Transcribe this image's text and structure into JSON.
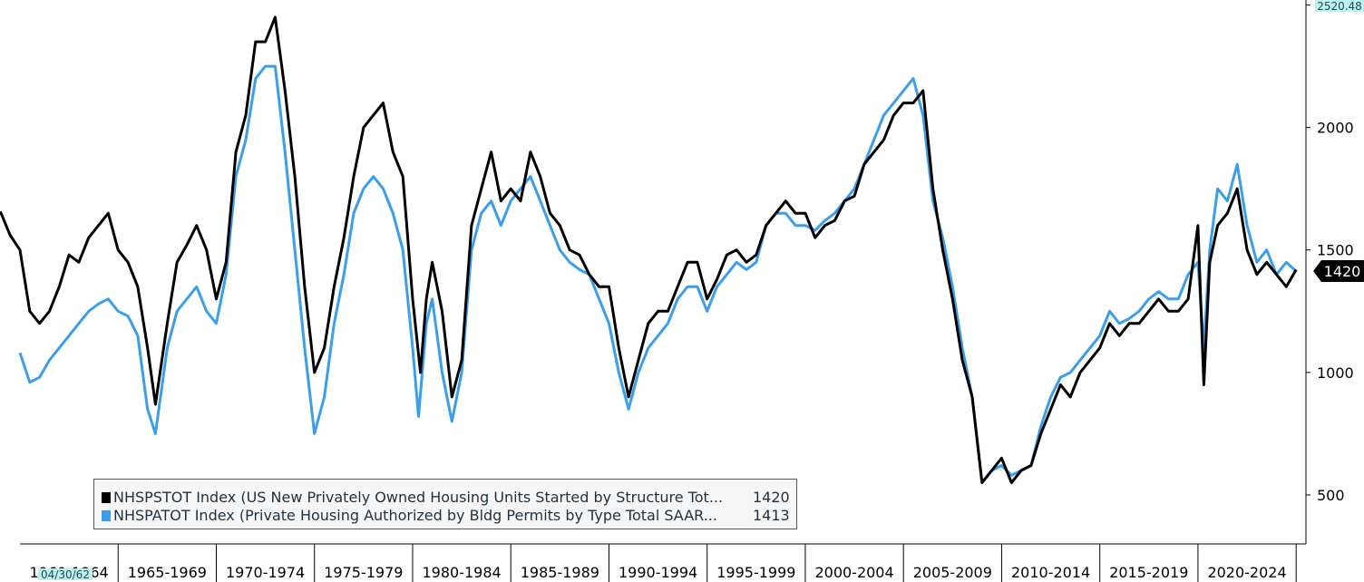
{
  "chart_data": {
    "type": "line",
    "ylim": [
      300,
      2520.48
    ],
    "yticks": [
      500,
      1000,
      1500,
      2000,
      2500
    ],
    "x_periods": [
      "1960-1964",
      "1965-1969",
      "1970-1974",
      "1975-1979",
      "1980-1984",
      "1985-1989",
      "1990-1994",
      "1995-1999",
      "2000-2004",
      "2005-2009",
      "2010-2014",
      "2015-2019",
      "2020-2024"
    ],
    "xlim": [
      1960,
      2025.5
    ],
    "top_value_label": "2520.48",
    "cursor_date_label": "04/30/62",
    "last_value_tag": "1420",
    "grid": false,
    "legend_position": "bottom-left",
    "series": [
      {
        "name": "NHSPSTOT Index (US New Privately Owned Housing Units Started by Structure Tot...",
        "last": "1420",
        "color": "#000000",
        "points": [
          [
            1959.0,
            1657
          ],
          [
            1959.5,
            1560
          ],
          [
            1960.0,
            1500
          ],
          [
            1960.5,
            1250
          ],
          [
            1961.0,
            1200
          ],
          [
            1961.5,
            1250
          ],
          [
            1962.0,
            1350
          ],
          [
            1962.5,
            1480
          ],
          [
            1963.0,
            1450
          ],
          [
            1963.5,
            1550
          ],
          [
            1964.0,
            1600
          ],
          [
            1964.5,
            1650
          ],
          [
            1965.0,
            1500
          ],
          [
            1965.5,
            1450
          ],
          [
            1966.0,
            1350
          ],
          [
            1966.5,
            1100
          ],
          [
            1966.9,
            870
          ],
          [
            1967.5,
            1200
          ],
          [
            1968.0,
            1450
          ],
          [
            1968.5,
            1520
          ],
          [
            1969.0,
            1600
          ],
          [
            1969.5,
            1500
          ],
          [
            1970.0,
            1300
          ],
          [
            1970.5,
            1450
          ],
          [
            1971.0,
            1900
          ],
          [
            1971.5,
            2050
          ],
          [
            1972.0,
            2350
          ],
          [
            1972.5,
            2350
          ],
          [
            1973.0,
            2450
          ],
          [
            1973.5,
            2150
          ],
          [
            1974.0,
            1800
          ],
          [
            1974.5,
            1350
          ],
          [
            1975.0,
            1000
          ],
          [
            1975.5,
            1100
          ],
          [
            1976.0,
            1350
          ],
          [
            1976.5,
            1550
          ],
          [
            1977.0,
            1800
          ],
          [
            1977.5,
            2000
          ],
          [
            1978.0,
            2050
          ],
          [
            1978.5,
            2100
          ],
          [
            1979.0,
            1900
          ],
          [
            1979.5,
            1800
          ],
          [
            1980.0,
            1300
          ],
          [
            1980.4,
            1000
          ],
          [
            1980.7,
            1300
          ],
          [
            1981.0,
            1450
          ],
          [
            1981.5,
            1250
          ],
          [
            1982.0,
            900
          ],
          [
            1982.5,
            1050
          ],
          [
            1983.0,
            1600
          ],
          [
            1983.5,
            1750
          ],
          [
            1984.0,
            1900
          ],
          [
            1984.5,
            1700
          ],
          [
            1985.0,
            1750
          ],
          [
            1985.5,
            1700
          ],
          [
            1986.0,
            1900
          ],
          [
            1986.5,
            1800
          ],
          [
            1987.0,
            1650
          ],
          [
            1987.5,
            1600
          ],
          [
            1988.0,
            1500
          ],
          [
            1988.5,
            1480
          ],
          [
            1989.0,
            1400
          ],
          [
            1989.5,
            1350
          ],
          [
            1990.0,
            1350
          ],
          [
            1990.5,
            1100
          ],
          [
            1991.0,
            900
          ],
          [
            1991.5,
            1050
          ],
          [
            1992.0,
            1200
          ],
          [
            1992.5,
            1250
          ],
          [
            1993.0,
            1250
          ],
          [
            1993.5,
            1350
          ],
          [
            1994.0,
            1450
          ],
          [
            1994.5,
            1450
          ],
          [
            1995.0,
            1300
          ],
          [
            1995.5,
            1380
          ],
          [
            1996.0,
            1480
          ],
          [
            1996.5,
            1500
          ],
          [
            1997.0,
            1450
          ],
          [
            1997.5,
            1480
          ],
          [
            1998.0,
            1600
          ],
          [
            1998.5,
            1650
          ],
          [
            1999.0,
            1700
          ],
          [
            1999.5,
            1650
          ],
          [
            2000.0,
            1650
          ],
          [
            2000.5,
            1550
          ],
          [
            2001.0,
            1600
          ],
          [
            2001.5,
            1620
          ],
          [
            2002.0,
            1700
          ],
          [
            2002.5,
            1720
          ],
          [
            2003.0,
            1850
          ],
          [
            2003.5,
            1900
          ],
          [
            2004.0,
            1950
          ],
          [
            2004.5,
            2050
          ],
          [
            2005.0,
            2100
          ],
          [
            2005.5,
            2100
          ],
          [
            2006.0,
            2150
          ],
          [
            2006.5,
            1750
          ],
          [
            2007.0,
            1500
          ],
          [
            2007.5,
            1300
          ],
          [
            2008.0,
            1050
          ],
          [
            2008.5,
            900
          ],
          [
            2009.0,
            550
          ],
          [
            2009.5,
            600
          ],
          [
            2010.0,
            650
          ],
          [
            2010.5,
            550
          ],
          [
            2011.0,
            600
          ],
          [
            2011.5,
            620
          ],
          [
            2012.0,
            750
          ],
          [
            2012.5,
            850
          ],
          [
            2013.0,
            950
          ],
          [
            2013.5,
            900
          ],
          [
            2014.0,
            1000
          ],
          [
            2014.5,
            1050
          ],
          [
            2015.0,
            1100
          ],
          [
            2015.5,
            1200
          ],
          [
            2016.0,
            1150
          ],
          [
            2016.5,
            1200
          ],
          [
            2017.0,
            1200
          ],
          [
            2017.5,
            1250
          ],
          [
            2018.0,
            1300
          ],
          [
            2018.5,
            1250
          ],
          [
            2019.0,
            1250
          ],
          [
            2019.5,
            1300
          ],
          [
            2020.0,
            1600
          ],
          [
            2020.3,
            950
          ],
          [
            2020.6,
            1450
          ],
          [
            2021.0,
            1600
          ],
          [
            2021.5,
            1650
          ],
          [
            2022.0,
            1750
          ],
          [
            2022.5,
            1500
          ],
          [
            2023.0,
            1400
          ],
          [
            2023.5,
            1450
          ],
          [
            2024.0,
            1400
          ],
          [
            2024.5,
            1350
          ],
          [
            2025.0,
            1420
          ]
        ]
      },
      {
        "name": "NHSPATOT Index (Private Housing Authorized by Bldg Permits by Type Total SAAR...",
        "last": "1413",
        "color": "#3b9eea",
        "points": [
          [
            1960.0,
            1080
          ],
          [
            1960.5,
            960
          ],
          [
            1961.0,
            980
          ],
          [
            1961.5,
            1050
          ],
          [
            1962.0,
            1100
          ],
          [
            1962.5,
            1150
          ],
          [
            1963.0,
            1200
          ],
          [
            1963.5,
            1250
          ],
          [
            1964.0,
            1280
          ],
          [
            1964.5,
            1300
          ],
          [
            1965.0,
            1250
          ],
          [
            1965.5,
            1230
          ],
          [
            1966.0,
            1150
          ],
          [
            1966.5,
            850
          ],
          [
            1966.9,
            750
          ],
          [
            1967.5,
            1100
          ],
          [
            1968.0,
            1250
          ],
          [
            1968.5,
            1300
          ],
          [
            1969.0,
            1350
          ],
          [
            1969.5,
            1250
          ],
          [
            1970.0,
            1200
          ],
          [
            1970.5,
            1400
          ],
          [
            1971.0,
            1800
          ],
          [
            1971.5,
            1950
          ],
          [
            1972.0,
            2200
          ],
          [
            1972.5,
            2250
          ],
          [
            1973.0,
            2250
          ],
          [
            1973.5,
            1900
          ],
          [
            1974.0,
            1500
          ],
          [
            1974.5,
            1100
          ],
          [
            1975.0,
            750
          ],
          [
            1975.5,
            900
          ],
          [
            1976.0,
            1200
          ],
          [
            1976.5,
            1400
          ],
          [
            1977.0,
            1650
          ],
          [
            1977.5,
            1750
          ],
          [
            1978.0,
            1800
          ],
          [
            1978.5,
            1750
          ],
          [
            1979.0,
            1650
          ],
          [
            1979.5,
            1500
          ],
          [
            1980.0,
            1100
          ],
          [
            1980.3,
            820
          ],
          [
            1980.7,
            1200
          ],
          [
            1981.0,
            1300
          ],
          [
            1981.5,
            1000
          ],
          [
            1982.0,
            800
          ],
          [
            1982.5,
            1000
          ],
          [
            1983.0,
            1500
          ],
          [
            1983.5,
            1650
          ],
          [
            1984.0,
            1700
          ],
          [
            1984.5,
            1600
          ],
          [
            1985.0,
            1700
          ],
          [
            1985.5,
            1750
          ],
          [
            1986.0,
            1800
          ],
          [
            1986.5,
            1700
          ],
          [
            1987.0,
            1600
          ],
          [
            1987.5,
            1500
          ],
          [
            1988.0,
            1450
          ],
          [
            1988.5,
            1420
          ],
          [
            1989.0,
            1400
          ],
          [
            1989.5,
            1300
          ],
          [
            1990.0,
            1200
          ],
          [
            1990.5,
            1000
          ],
          [
            1991.0,
            850
          ],
          [
            1991.5,
            1000
          ],
          [
            1992.0,
            1100
          ],
          [
            1992.5,
            1150
          ],
          [
            1993.0,
            1200
          ],
          [
            1993.5,
            1300
          ],
          [
            1994.0,
            1350
          ],
          [
            1994.5,
            1350
          ],
          [
            1995.0,
            1250
          ],
          [
            1995.5,
            1350
          ],
          [
            1996.0,
            1400
          ],
          [
            1996.5,
            1450
          ],
          [
            1997.0,
            1420
          ],
          [
            1997.5,
            1450
          ],
          [
            1998.0,
            1600
          ],
          [
            1998.5,
            1650
          ],
          [
            1999.0,
            1650
          ],
          [
            1999.5,
            1600
          ],
          [
            2000.0,
            1600
          ],
          [
            2000.5,
            1580
          ],
          [
            2001.0,
            1620
          ],
          [
            2001.5,
            1650
          ],
          [
            2002.0,
            1700
          ],
          [
            2002.5,
            1750
          ],
          [
            2003.0,
            1850
          ],
          [
            2003.5,
            1950
          ],
          [
            2004.0,
            2050
          ],
          [
            2004.5,
            2100
          ],
          [
            2005.0,
            2150
          ],
          [
            2005.5,
            2200
          ],
          [
            2006.0,
            2050
          ],
          [
            2006.5,
            1700
          ],
          [
            2007.0,
            1550
          ],
          [
            2007.5,
            1350
          ],
          [
            2008.0,
            1100
          ],
          [
            2008.5,
            900
          ],
          [
            2009.0,
            550
          ],
          [
            2009.5,
            600
          ],
          [
            2010.0,
            620
          ],
          [
            2010.5,
            580
          ],
          [
            2011.0,
            600
          ],
          [
            2011.5,
            620
          ],
          [
            2012.0,
            780
          ],
          [
            2012.5,
            900
          ],
          [
            2013.0,
            980
          ],
          [
            2013.5,
            1000
          ],
          [
            2014.0,
            1050
          ],
          [
            2014.5,
            1100
          ],
          [
            2015.0,
            1150
          ],
          [
            2015.5,
            1250
          ],
          [
            2016.0,
            1200
          ],
          [
            2016.5,
            1220
          ],
          [
            2017.0,
            1250
          ],
          [
            2017.5,
            1300
          ],
          [
            2018.0,
            1330
          ],
          [
            2018.5,
            1300
          ],
          [
            2019.0,
            1300
          ],
          [
            2019.5,
            1400
          ],
          [
            2020.0,
            1450
          ],
          [
            2020.3,
            1100
          ],
          [
            2020.6,
            1500
          ],
          [
            2021.0,
            1750
          ],
          [
            2021.5,
            1700
          ],
          [
            2022.0,
            1850
          ],
          [
            2022.5,
            1600
          ],
          [
            2023.0,
            1450
          ],
          [
            2023.5,
            1500
          ],
          [
            2024.0,
            1400
          ],
          [
            2024.5,
            1450
          ],
          [
            2025.0,
            1413
          ]
        ]
      }
    ]
  },
  "legend": {
    "items": [
      {
        "label": "NHSPSTOT Index (US New Privately Owned Housing Units Started by Structure Tot...",
        "value": "1420",
        "color": "#000000"
      },
      {
        "label": "NHSPATOT Index (Private Housing Authorized by Bldg Permits by Type Total SAAR...",
        "value": "1413",
        "color": "#3b9eea"
      }
    ]
  }
}
